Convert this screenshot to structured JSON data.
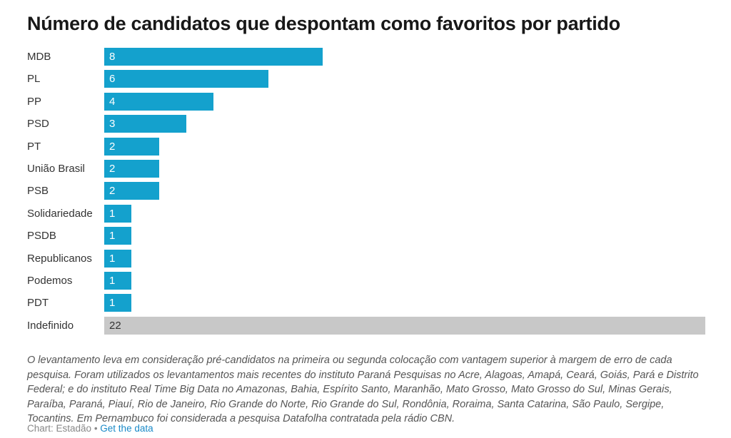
{
  "chart_data": {
    "type": "bar",
    "orientation": "horizontal",
    "title": "Número de candidatos que despontam como favoritos por partido",
    "categories": [
      "MDB",
      "PL",
      "PP",
      "PSD",
      "PT",
      "União Brasil",
      "PSB",
      "Solidariedade",
      "PSDB",
      "Republicanos",
      "Podemos",
      "PDT",
      "Indefinido"
    ],
    "values": [
      8,
      6,
      4,
      3,
      2,
      2,
      2,
      1,
      1,
      1,
      1,
      1,
      22
    ],
    "xlim": [
      0,
      22
    ],
    "colors": {
      "party": "#14a1cd",
      "undefined": "#c8c8c8",
      "party_label": "#ffffff",
      "undefined_label": "#333333"
    }
  },
  "note": "O levantamento leva em consideração pré-candidatos na primeira ou segunda colocação com vantagem superior à margem de erro de cada pesquisa. Foram utilizados os levantamentos mais recentes do instituto Paraná Pesquisas no Acre, Alagoas, Amapá, Ceará, Goiás, Pará e Distrito Federal; e do instituto Real Time Big Data no Amazonas, Bahia, Espírito Santo, Maranhão, Mato Grosso, Mato Grosso do Sul, Minas Gerais, Paraíba, Paraná, Piauí, Rio de Janeiro, Rio Grande do Norte, Rio Grande do Sul, Rondônia, Roraima, Santa Catarina, São Paulo, Sergipe, Tocantins. Em Pernambuco foi considerada a pesquisa Datafolha contratada pela rádio CBN.",
  "footer": {
    "source": "Chart: Estadão",
    "separator": " • ",
    "link": "Get the data"
  }
}
